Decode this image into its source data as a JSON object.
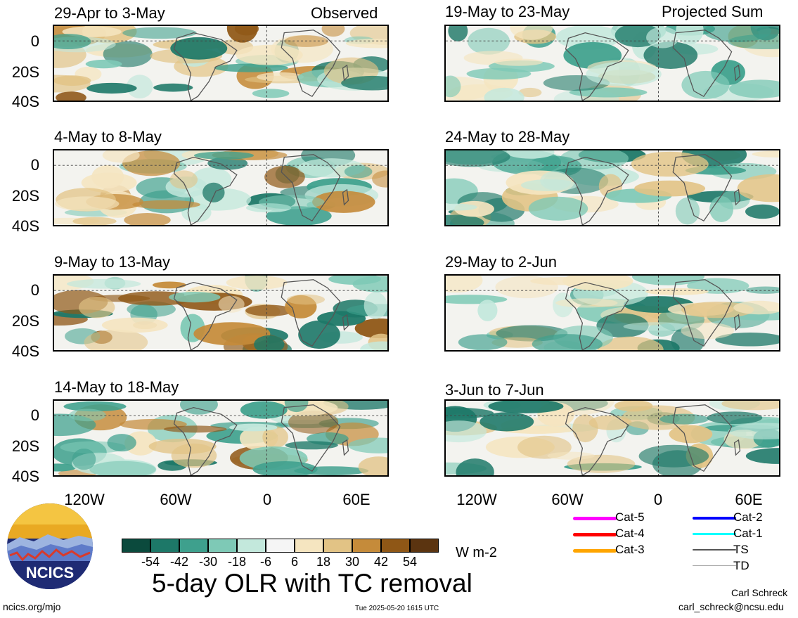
{
  "left_header_right": "Observed",
  "right_header_right": "Projected Sum",
  "panels_left": [
    {
      "date_range": "29-Apr to 3-May"
    },
    {
      "date_range": "4-May to 8-May"
    },
    {
      "date_range": "9-May to 13-May"
    },
    {
      "date_range": "14-May to 18-May"
    }
  ],
  "panels_right": [
    {
      "date_range": "19-May to 23-May"
    },
    {
      "date_range": "24-May to 28-May"
    },
    {
      "date_range": "29-May to 2-Jun"
    },
    {
      "date_range": "3-Jun to 7-Jun"
    }
  ],
  "y_axis_labels": [
    "0",
    "20S",
    "40S"
  ],
  "x_axis_labels": [
    "120W",
    "60W",
    "0",
    "60E"
  ],
  "colorbar": {
    "colors": [
      "#0b4a3d",
      "#1d7868",
      "#3ea08d",
      "#7ec9b6",
      "#c3e8dc",
      "#f5f5f5",
      "#f5e5c0",
      "#e2c385",
      "#c58b3a",
      "#8f5716",
      "#5b3410"
    ],
    "labels": [
      "-54",
      "-42",
      "-30",
      "-18",
      "-6",
      "6",
      "18",
      "30",
      "42",
      "54"
    ],
    "units": "W m-2"
  },
  "track_legend": [
    {
      "label": "Cat-5",
      "color": "#ff00ff"
    },
    {
      "label": "Cat-4",
      "color": "#ff0000"
    },
    {
      "label": "Cat-3",
      "color": "#ffa500"
    },
    {
      "label": "Cat-2",
      "color": "#0000ff"
    },
    {
      "label": "Cat-1",
      "color": "#00ffff"
    },
    {
      "label": "TS",
      "color": "#555555"
    },
    {
      "label": "TD",
      "color": "#aaaaaa"
    }
  ],
  "logo_text": "NCICS",
  "main_title": "5-day OLR with TC removal",
  "url": "ncics.org/mjo",
  "timestamp": "Tue 2025-05-20 1615 UTC",
  "author": "Carl Schreck",
  "email": "carl_schreck@ncsu.edu"
}
